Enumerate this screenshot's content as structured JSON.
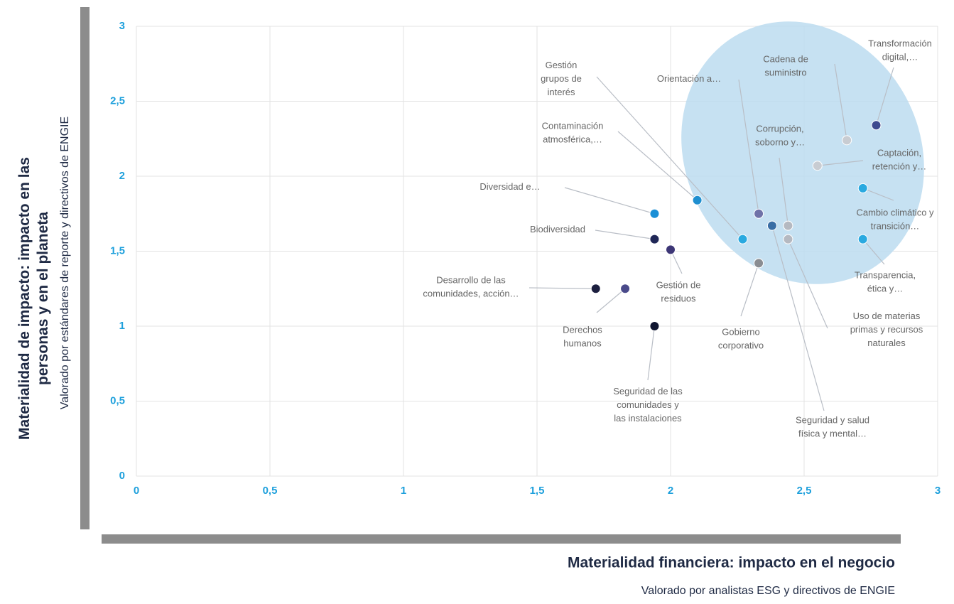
{
  "chart_data": {
    "type": "scatter",
    "ylabel": "Materialidad de impacto: impacto en las\npersonas y en el planeta",
    "ysublabel": "Valorado por estándares de reporte y directivos de ENGIE",
    "xlabel": "Materialidad financiera: impacto en el negocio",
    "xsublabel": "Valorado por analistas ESG y directivos de ENGIE",
    "xlim": [
      0,
      3
    ],
    "ylim": [
      0,
      3
    ],
    "xticks": [
      0,
      {
        "value": 0.5,
        "label": "0,5"
      },
      1,
      {
        "value": 1.5,
        "label": "1,5"
      },
      2,
      {
        "value": 2.5,
        "label": "2,5"
      },
      3
    ],
    "yticks": [
      0,
      {
        "value": 0.5,
        "label": "0,5"
      },
      1,
      {
        "value": 1.5,
        "label": "1,5"
      },
      2,
      {
        "value": 2.5,
        "label": "2,5"
      },
      3
    ],
    "grid": true,
    "points": [
      {
        "label": "Transformación\ndigital,…",
        "x": 2.77,
        "y": 2.34,
        "color": "#3f4a8f"
      },
      {
        "label": "Cadena de\nsuministro",
        "x": 2.66,
        "y": 2.24,
        "color": "#c8ccd2"
      },
      {
        "label": "Captación,\nretención y…",
        "x": 2.55,
        "y": 2.07,
        "color": "#c8ccd2"
      },
      {
        "label": "Cambio climático y\ntransición…",
        "x": 2.72,
        "y": 1.92,
        "color": "#2aa9e0"
      },
      {
        "label": "Transparencia,\nética y…",
        "x": 2.72,
        "y": 1.58,
        "color": "#2aa9e0"
      },
      {
        "label": "Orientación a…",
        "x": 2.33,
        "y": 1.75,
        "color": "#6f72a8"
      },
      {
        "label": "Corrupción,\nsoborno y…",
        "x": 2.44,
        "y": 1.67,
        "color": "#b5b9c1"
      },
      {
        "label": "Uso de materias\nprimas y recursos\nnaturales",
        "x": 2.44,
        "y": 1.58,
        "color": "#b5b9c1"
      },
      {
        "label": "Seguridad y salud\nfísica y mental…",
        "x": 2.38,
        "y": 1.67,
        "color": "#3a6ea5"
      },
      {
        "label": "Gobierno\ncorporativo",
        "x": 2.33,
        "y": 1.42,
        "color": "#8a8d92"
      },
      {
        "label": "Gestión\ngrupos de\ninterés",
        "x": 2.27,
        "y": 1.58,
        "color": "#2aa9e0"
      },
      {
        "label": "Contaminación\natmosférica,…",
        "x": 2.1,
        "y": 1.84,
        "color": "#1f8fd0"
      },
      {
        "label": "Diversidad e…",
        "x": 1.94,
        "y": 1.75,
        "color": "#1a8fd6"
      },
      {
        "label": "Biodiversidad",
        "x": 1.94,
        "y": 1.58,
        "color": "#1f2757"
      },
      {
        "label": "Gestión de\nresiduos",
        "x": 2.0,
        "y": 1.51,
        "color": "#3d3676"
      },
      {
        "label": "Desarrollo de las\ncomunidades, acción…",
        "x": 1.72,
        "y": 1.25,
        "color": "#1c1f3f"
      },
      {
        "label": "Derechos\nhumanos",
        "x": 1.83,
        "y": 1.25,
        "color": "#4a4a8a"
      },
      {
        "label": "Seguridad de las\ncomunidades y\nlas instalaciones",
        "x": 1.94,
        "y": 1.0,
        "color": "#0f1530"
      }
    ]
  }
}
